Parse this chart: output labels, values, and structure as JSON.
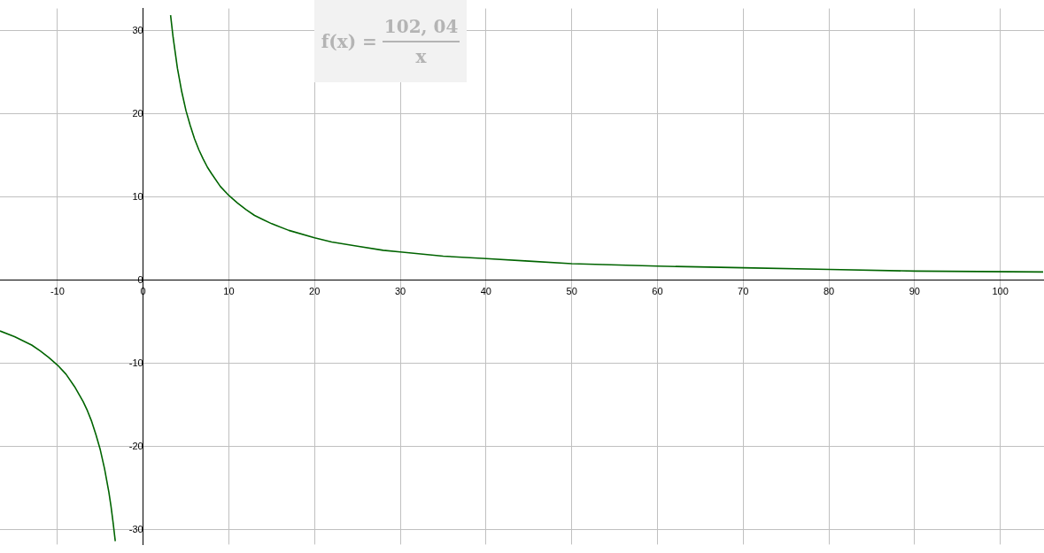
{
  "chart_data": {
    "type": "line",
    "annotations": [
      "f(x) =",
      "102, 04",
      "x"
    ],
    "xlim": [
      -16.7,
      105.1
    ],
    "ylim": [
      -31.8,
      32.7
    ],
    "xticks": [
      -10,
      0,
      10,
      20,
      30,
      40,
      50,
      60,
      70,
      80,
      90,
      100
    ],
    "yticks": [
      -30,
      -20,
      -10,
      0,
      10,
      20,
      30
    ],
    "grid": true,
    "marker": "none",
    "line_style": "solid",
    "series": [
      {
        "color": "#006400",
        "x": [
          3.2,
          3.5,
          4,
          4.5,
          5,
          5.5,
          6,
          6.5,
          7,
          7.5,
          8,
          9,
          10,
          11,
          12,
          13,
          14,
          15,
          17,
          20,
          22,
          25,
          28,
          30,
          35,
          40,
          45,
          50,
          60,
          70,
          80,
          90,
          105
        ],
        "values": [
          31.9,
          29.2,
          25.5,
          22.7,
          20.4,
          18.6,
          17.0,
          15.7,
          14.6,
          13.6,
          12.8,
          11.3,
          10.2,
          9.3,
          8.5,
          7.8,
          7.3,
          6.8,
          6.0,
          5.1,
          4.6,
          4.1,
          3.6,
          3.4,
          2.9,
          2.6,
          2.3,
          2.0,
          1.7,
          1.5,
          1.3,
          1.1,
          1.0
        ]
      },
      {
        "color": "#006400",
        "x": [
          -16.7,
          -15,
          -13,
          -12,
          -11,
          -10,
          -9,
          -8,
          -7,
          -6.5,
          -6,
          -5.5,
          -5,
          -4.5,
          -4,
          -3.75,
          -3.5,
          -3.25
        ],
        "values": [
          -6.1,
          -6.8,
          -7.8,
          -8.5,
          -9.3,
          -10.2,
          -11.3,
          -12.8,
          -14.6,
          -15.7,
          -17.0,
          -18.6,
          -20.4,
          -22.7,
          -25.5,
          -27.2,
          -29.2,
          -31.4
        ]
      }
    ]
  }
}
